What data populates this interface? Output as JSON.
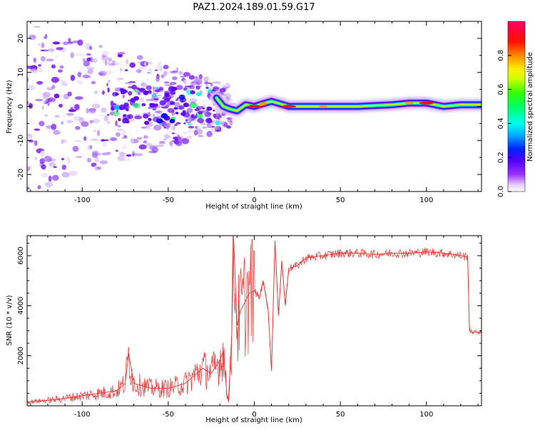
{
  "title": "PAZ1.2024.189.01.59.G17",
  "chart_data": [
    {
      "type": "heatmap",
      "xlabel": "Height of straight line (km)",
      "ylabel": "Frequency (Hz)",
      "xlim": [
        -132,
        132
      ],
      "ylim": [
        -25,
        25
      ],
      "x_ticks": [
        -100,
        -50,
        0,
        50,
        100
      ],
      "y_ticks": [
        -20,
        -10,
        0,
        10,
        20
      ],
      "grid": false,
      "colorbar": {
        "label": "Normalized spectral amplitude",
        "ticks": [
          0.0,
          0.2,
          0.4,
          0.6,
          0.8
        ],
        "range": [
          0,
          1
        ],
        "colormap": [
          "#ffffff",
          "#f0e0ff",
          "#e0b8ff",
          "#9a33ff",
          "#6a00ff",
          "#0000ff",
          "#00c8ff",
          "#00ff7f",
          "#7fff00",
          "#ffff00",
          "#ff8000",
          "#ff0000",
          "#ff0066"
        ]
      },
      "ridge": {
        "x": [
          -22,
          -18,
          -14,
          -10,
          -5,
          0,
          5,
          10,
          20,
          40,
          60,
          80,
          90,
          100,
          110,
          120,
          132
        ],
        "frequency": [
          2.5,
          0,
          -0.8,
          -1.3,
          0.5,
          0,
          0.8,
          1.5,
          0,
          0,
          0,
          0.5,
          1,
          1,
          0,
          0.5,
          0.5
        ],
        "amplitude": [
          0.3,
          0.35,
          0.4,
          0.3,
          0.35,
          0.85,
          0.6,
          0.55,
          0.9,
          0.6,
          0.45,
          0.45,
          0.65,
          0.9,
          0.45,
          0.45,
          0.4
        ]
      }
    },
    {
      "type": "line",
      "xlabel": "Height of straight line (km)",
      "ylabel": "SNR (10 * v/v)",
      "xlim": [
        -132,
        132
      ],
      "ylim": [
        0,
        6800
      ],
      "x_ticks": [
        -100,
        -50,
        0,
        50,
        100
      ],
      "y_ticks": [
        2000,
        4000,
        6000
      ],
      "line_color": "#ee3333",
      "series": [
        {
          "x": [
            -132,
            -120,
            -110,
            -100,
            -90,
            -80,
            -75,
            -73,
            -70,
            -60,
            -50,
            -40,
            -35,
            -30,
            -25,
            -20,
            -18,
            -16,
            -15,
            -13,
            -12,
            -10,
            -8,
            -5,
            -3,
            0,
            3,
            5,
            8,
            10,
            12,
            14,
            16,
            18,
            20,
            25,
            30,
            40,
            50,
            60,
            70,
            80,
            90,
            100,
            110,
            120,
            124,
            125,
            126,
            132
          ],
          "y": [
            150,
            220,
            300,
            400,
            500,
            600,
            900,
            2100,
            900,
            700,
            700,
            900,
            1200,
            1500,
            1300,
            1800,
            2200,
            500,
            200,
            3000,
            6700,
            3200,
            3800,
            4200,
            4500,
            4600,
            4300,
            5000,
            3900,
            1400,
            6600,
            3600,
            5800,
            4000,
            5500,
            5600,
            5900,
            6000,
            6100,
            6100,
            6050,
            6100,
            6100,
            6150,
            6100,
            6000,
            5950,
            3000,
            2950,
            2950
          ]
        }
      ]
    }
  ]
}
